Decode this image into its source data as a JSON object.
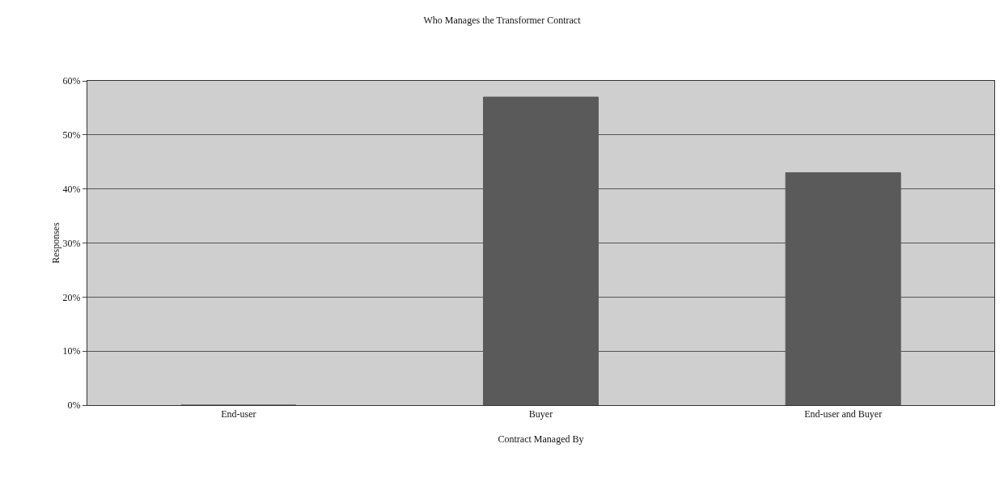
{
  "chart_data": {
    "type": "bar",
    "title": "Who Manages the Transformer Contract",
    "xlabel": "Contract Managed By",
    "ylabel": "Responses",
    "categories": [
      "End-user",
      "Buyer",
      "End-user and Buyer"
    ],
    "values": [
      0,
      57,
      43
    ],
    "color": "#5a5a5a",
    "ylim": [
      0,
      60
    ],
    "yticks": [
      {
        "value": 0,
        "label": "0%"
      },
      {
        "value": 10,
        "label": "10%"
      },
      {
        "value": 20,
        "label": "20%"
      },
      {
        "value": 30,
        "label": "30%"
      },
      {
        "value": 40,
        "label": "40%"
      },
      {
        "value": 50,
        "label": "50%"
      },
      {
        "value": 60,
        "label": "60%"
      }
    ],
    "grid": "y"
  }
}
